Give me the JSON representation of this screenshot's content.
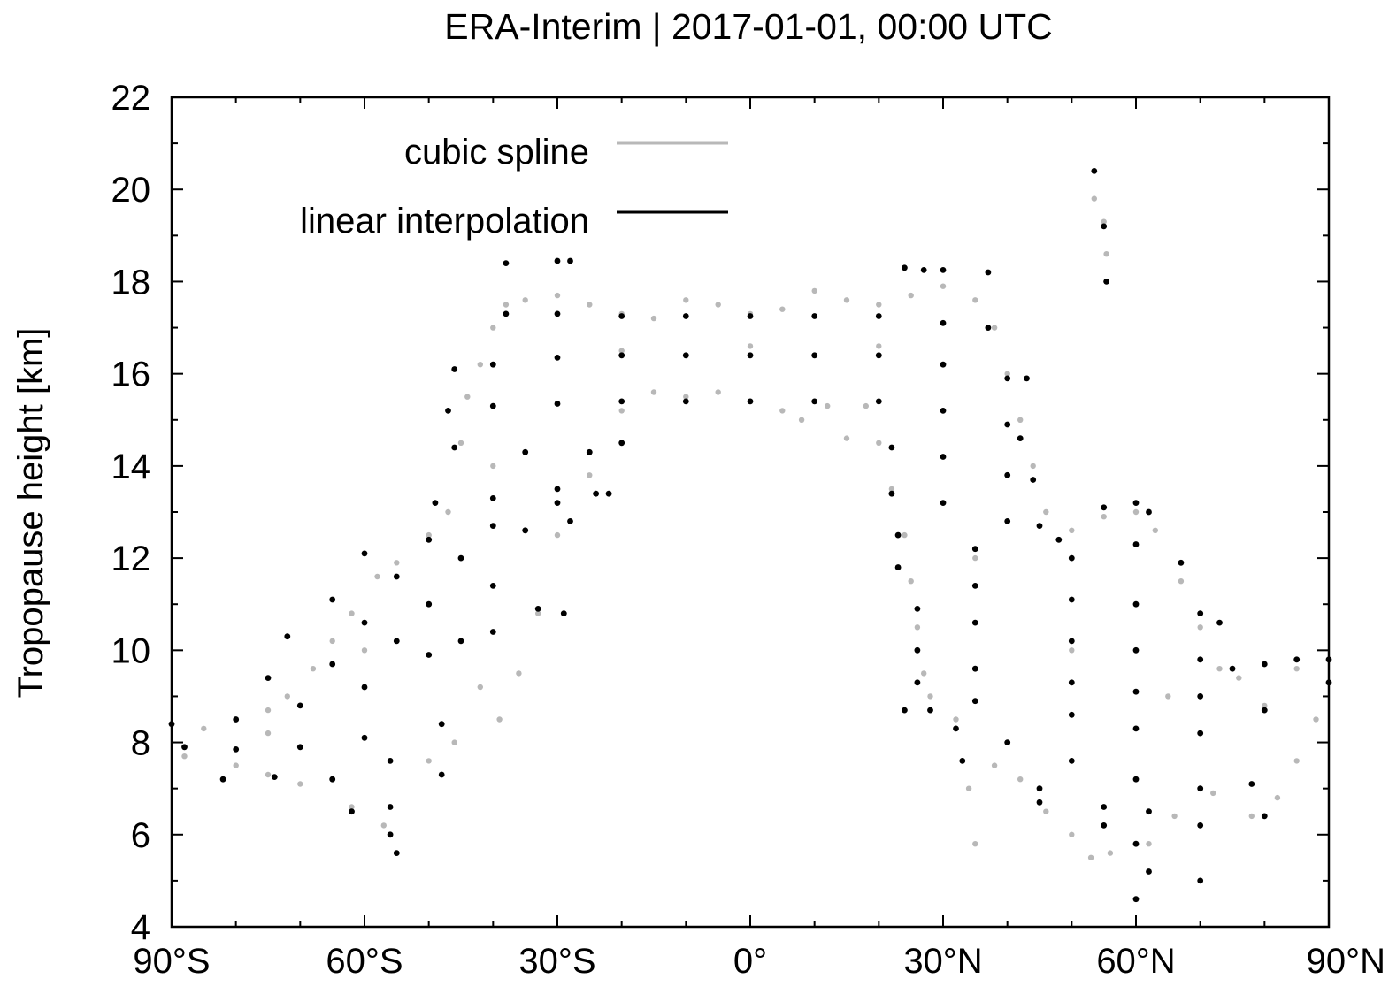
{
  "chart_data": {
    "type": "scatter",
    "title": "ERA-Interim | 2017-01-01, 00:00 UTC",
    "xlabel": "",
    "ylabel": "Tropopause height [km]",
    "xlim": [
      -90,
      90
    ],
    "ylim": [
      4,
      22
    ],
    "grid": false,
    "legend_position": "top-left",
    "x_ticks": [
      {
        "value": -90,
        "label": "90°S"
      },
      {
        "value": -60,
        "label": "60°S"
      },
      {
        "value": -30,
        "label": "30°S"
      },
      {
        "value": 0,
        "label": "0°"
      },
      {
        "value": 30,
        "label": "30°N"
      },
      {
        "value": 60,
        "label": "60°N"
      },
      {
        "value": 90,
        "label": "90°N"
      }
    ],
    "y_ticks": [
      {
        "value": 4,
        "label": "4"
      },
      {
        "value": 6,
        "label": "6"
      },
      {
        "value": 8,
        "label": "8"
      },
      {
        "value": 10,
        "label": "10"
      },
      {
        "value": 12,
        "label": "12"
      },
      {
        "value": 14,
        "label": "14"
      },
      {
        "value": 16,
        "label": "16"
      },
      {
        "value": 18,
        "label": "18"
      },
      {
        "value": 20,
        "label": "20"
      },
      {
        "value": 22,
        "label": "22"
      }
    ],
    "series": [
      {
        "name": "cubic spline",
        "color": "#b8b8b8",
        "points": [
          [
            -90,
            8.4
          ],
          [
            -85,
            8.3
          ],
          [
            -80,
            8.5
          ],
          [
            -75,
            8.7
          ],
          [
            -72,
            9.0
          ],
          [
            -68,
            9.6
          ],
          [
            -65,
            10.2
          ],
          [
            -62,
            10.8
          ],
          [
            -58,
            11.6
          ],
          [
            -55,
            11.9
          ],
          [
            -50,
            12.5
          ],
          [
            -47,
            13.0
          ],
          [
            -45,
            14.5
          ],
          [
            -44,
            15.5
          ],
          [
            -42,
            16.2
          ],
          [
            -40,
            17.0
          ],
          [
            -38,
            17.5
          ],
          [
            -35,
            17.6
          ],
          [
            -30,
            17.7
          ],
          [
            -25,
            17.5
          ],
          [
            -20,
            17.3
          ],
          [
            -15,
            17.2
          ],
          [
            -10,
            17.6
          ],
          [
            -5,
            17.5
          ],
          [
            0,
            17.3
          ],
          [
            5,
            17.4
          ],
          [
            10,
            17.8
          ],
          [
            15,
            17.6
          ],
          [
            20,
            17.5
          ],
          [
            25,
            17.7
          ],
          [
            30,
            17.9
          ],
          [
            35,
            17.6
          ],
          [
            38,
            17.0
          ],
          [
            40,
            16.0
          ],
          [
            42,
            15.0
          ],
          [
            44,
            14.0
          ],
          [
            46,
            13.0
          ],
          [
            50,
            12.6
          ],
          [
            55,
            12.9
          ],
          [
            60,
            13.0
          ],
          [
            63,
            12.6
          ],
          [
            67,
            11.5
          ],
          [
            70,
            10.5
          ],
          [
            73,
            9.6
          ],
          [
            76,
            9.4
          ],
          [
            80,
            9.7
          ],
          [
            85,
            9.6
          ],
          [
            90,
            9.3
          ],
          [
            -88,
            7.7
          ],
          [
            -80,
            7.5
          ],
          [
            -75,
            7.3
          ],
          [
            -70,
            7.1
          ],
          [
            -62,
            6.6
          ],
          [
            -57,
            6.2
          ],
          [
            -55,
            5.6
          ],
          [
            -50,
            7.6
          ],
          [
            -46,
            8.0
          ],
          [
            -42,
            9.2
          ],
          [
            -39,
            8.5
          ],
          [
            -36,
            9.5
          ],
          [
            -33,
            10.8
          ],
          [
            -30,
            12.5
          ],
          [
            -25,
            13.8
          ],
          [
            -20,
            15.2
          ],
          [
            -15,
            15.6
          ],
          [
            -10,
            15.5
          ],
          [
            -5,
            15.6
          ],
          [
            0,
            15.4
          ],
          [
            5,
            15.2
          ],
          [
            8,
            15.0
          ],
          [
            12,
            15.3
          ],
          [
            15,
            14.6
          ],
          [
            18,
            15.3
          ],
          [
            20,
            14.5
          ],
          [
            22,
            13.5
          ],
          [
            24,
            12.5
          ],
          [
            25,
            11.5
          ],
          [
            26,
            10.5
          ],
          [
            27,
            9.5
          ],
          [
            28,
            9.0
          ],
          [
            32,
            8.5
          ],
          [
            34,
            7.0
          ],
          [
            35,
            5.8
          ],
          [
            38,
            7.5
          ],
          [
            42,
            7.2
          ],
          [
            46,
            6.5
          ],
          [
            50,
            6.0
          ],
          [
            53,
            5.5
          ],
          [
            56,
            5.6
          ],
          [
            60,
            4.6
          ],
          [
            62,
            5.8
          ],
          [
            66,
            6.4
          ],
          [
            70,
            5.0
          ],
          [
            72,
            6.9
          ],
          [
            78,
            6.4
          ],
          [
            82,
            6.8
          ],
          [
            85,
            7.6
          ],
          [
            88,
            8.5
          ],
          [
            53.5,
            19.8
          ],
          [
            55,
            19.3
          ],
          [
            55.4,
            18.6
          ],
          [
            -20,
            16.5
          ],
          [
            0,
            16.6
          ],
          [
            20,
            16.6
          ],
          [
            -40,
            14.0
          ],
          [
            -60,
            10.0
          ],
          [
            -75,
            8.2
          ],
          [
            35,
            12.0
          ],
          [
            50,
            10.0
          ],
          [
            65,
            9.0
          ],
          [
            80,
            8.8
          ]
        ]
      },
      {
        "name": "linear interpolation",
        "color": "#000000",
        "points": [
          [
            -90,
            8.4
          ],
          [
            -80,
            8.5
          ],
          [
            -70,
            8.8
          ],
          [
            -60,
            9.2
          ],
          [
            -50,
            9.9
          ],
          [
            -45,
            10.2
          ],
          [
            -88,
            7.9
          ],
          [
            -80,
            7.85
          ],
          [
            -70,
            7.9
          ],
          [
            -60,
            8.1
          ],
          [
            -48,
            8.4
          ],
          [
            -82,
            7.2
          ],
          [
            -74,
            7.25
          ],
          [
            -65,
            7.2
          ],
          [
            -56,
            7.6
          ],
          [
            -48,
            7.3
          ],
          [
            -62,
            6.5
          ],
          [
            -56,
            6.6
          ],
          [
            -55,
            5.6
          ],
          [
            -56,
            6.0
          ],
          [
            -75,
            9.4
          ],
          [
            -65,
            9.7
          ],
          [
            -55,
            10.2
          ],
          [
            -40,
            10.4
          ],
          [
            -72,
            10.3
          ],
          [
            -60,
            10.6
          ],
          [
            -50,
            11.0
          ],
          [
            -40,
            11.4
          ],
          [
            -65,
            11.1
          ],
          [
            -55,
            11.6
          ],
          [
            -45,
            12.0
          ],
          [
            -35,
            12.6
          ],
          [
            -28,
            12.8
          ],
          [
            -60,
            12.1
          ],
          [
            -50,
            12.4
          ],
          [
            -40,
            12.7
          ],
          [
            -30,
            13.2
          ],
          [
            -24,
            13.4
          ],
          [
            -49,
            13.2
          ],
          [
            -40,
            13.3
          ],
          [
            -30,
            13.5
          ],
          [
            -22,
            13.4
          ],
          [
            -46,
            14.4
          ],
          [
            -35,
            14.3
          ],
          [
            -25,
            14.3
          ],
          [
            -20,
            14.5
          ],
          [
            -47,
            15.2
          ],
          [
            -40,
            15.3
          ],
          [
            -30,
            15.35
          ],
          [
            -20,
            15.4
          ],
          [
            -10,
            15.4
          ],
          [
            0,
            15.4
          ],
          [
            10,
            15.4
          ],
          [
            20,
            15.4
          ],
          [
            30,
            15.2
          ],
          [
            40,
            14.9
          ],
          [
            42,
            14.6
          ],
          [
            -46,
            16.1
          ],
          [
            -40,
            16.2
          ],
          [
            -30,
            16.35
          ],
          [
            -20,
            16.4
          ],
          [
            -10,
            16.4
          ],
          [
            0,
            16.4
          ],
          [
            10,
            16.4
          ],
          [
            20,
            16.4
          ],
          [
            30,
            16.2
          ],
          [
            40,
            15.9
          ],
          [
            43,
            15.9
          ],
          [
            -38,
            17.3
          ],
          [
            -30,
            17.3
          ],
          [
            -20,
            17.25
          ],
          [
            -10,
            17.25
          ],
          [
            0,
            17.25
          ],
          [
            10,
            17.25
          ],
          [
            20,
            17.25
          ],
          [
            30,
            17.1
          ],
          [
            37,
            17.0
          ],
          [
            -38,
            18.4
          ],
          [
            -30,
            18.45
          ],
          [
            -28,
            18.45
          ],
          [
            24,
            18.3
          ],
          [
            27,
            18.25
          ],
          [
            30,
            18.25
          ],
          [
            37,
            18.2
          ],
          [
            -33,
            10.9
          ],
          [
            -29,
            10.8
          ],
          [
            22,
            14.4
          ],
          [
            30,
            14.2
          ],
          [
            40,
            13.8
          ],
          [
            44,
            13.7
          ],
          [
            22,
            13.4
          ],
          [
            30,
            13.2
          ],
          [
            40,
            12.8
          ],
          [
            45,
            12.7
          ],
          [
            23,
            12.5
          ],
          [
            35,
            12.2
          ],
          [
            50,
            12.0
          ],
          [
            60,
            12.3
          ],
          [
            67,
            11.9
          ],
          [
            23,
            11.8
          ],
          [
            35,
            11.4
          ],
          [
            50,
            11.1
          ],
          [
            60,
            11.0
          ],
          [
            70,
            10.8
          ],
          [
            73,
            10.6
          ],
          [
            26,
            10.9
          ],
          [
            35,
            10.6
          ],
          [
            50,
            10.2
          ],
          [
            60,
            10.0
          ],
          [
            70,
            9.8
          ],
          [
            75,
            9.6
          ],
          [
            26,
            10.0
          ],
          [
            35,
            9.6
          ],
          [
            50,
            9.3
          ],
          [
            60,
            9.1
          ],
          [
            70,
            9.0
          ],
          [
            80,
            9.7
          ],
          [
            90,
            9.3
          ],
          [
            26,
            9.3
          ],
          [
            35,
            8.9
          ],
          [
            50,
            8.6
          ],
          [
            60,
            8.3
          ],
          [
            70,
            8.2
          ],
          [
            80,
            8.7
          ],
          [
            85,
            9.8
          ],
          [
            90,
            9.8
          ],
          [
            24,
            8.7
          ],
          [
            28,
            8.7
          ],
          [
            32,
            8.3
          ],
          [
            40,
            8.0
          ],
          [
            50,
            7.6
          ],
          [
            60,
            7.2
          ],
          [
            70,
            7.0
          ],
          [
            78,
            7.1
          ],
          [
            33,
            7.6
          ],
          [
            45,
            7.0
          ],
          [
            55,
            6.6
          ],
          [
            62,
            6.5
          ],
          [
            70,
            6.2
          ],
          [
            80,
            6.4
          ],
          [
            45,
            6.7
          ],
          [
            55,
            6.2
          ],
          [
            60,
            5.8
          ],
          [
            62,
            5.2
          ],
          [
            60,
            4.6
          ],
          [
            70,
            5.0
          ],
          [
            53.5,
            20.4
          ],
          [
            55,
            19.2
          ],
          [
            55.4,
            18.0
          ],
          [
            48,
            12.4
          ],
          [
            55,
            13.1
          ],
          [
            60,
            13.2
          ],
          [
            62,
            13.0
          ]
        ]
      }
    ]
  }
}
